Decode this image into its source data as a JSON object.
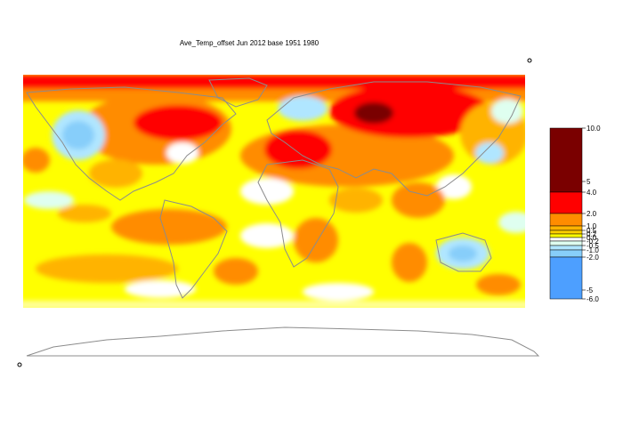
{
  "title": "Ave_Temp_offset Jun 2012  base 1951 1980",
  "legend": {
    "ticks": [
      "10.0",
      "5",
      "4.0",
      "2.0",
      "1.0",
      "0.5",
      "0.2",
      "0.0",
      "-0.2",
      "-0.5",
      "-1.0",
      "-2.0",
      "-5",
      "-6.0"
    ],
    "bands": [
      {
        "from": 4,
        "to": 10,
        "color": "#7a0000"
      },
      {
        "from": 2,
        "to": 4,
        "color": "#ff0000"
      },
      {
        "from": 1,
        "to": 2,
        "color": "#ff8c00"
      },
      {
        "from": 0.5,
        "to": 1,
        "color": "#ffb300"
      },
      {
        "from": 0.2,
        "to": 0.5,
        "color": "#ffd000"
      },
      {
        "from": 0,
        "to": 0.2,
        "color": "#ffff00"
      },
      {
        "from": -0.2,
        "to": 0,
        "color": "#ffffff"
      },
      {
        "from": -0.5,
        "to": -0.2,
        "color": "#dffff0"
      },
      {
        "from": -1,
        "to": -0.5,
        "color": "#b0e6ff"
      },
      {
        "from": -2,
        "to": -1,
        "color": "#87cefa"
      },
      {
        "from": -6,
        "to": -2,
        "color": "#4d9fff"
      }
    ]
  },
  "colors": {
    "land_outline": "#8c8c8c",
    "background": "#ffffff"
  }
}
